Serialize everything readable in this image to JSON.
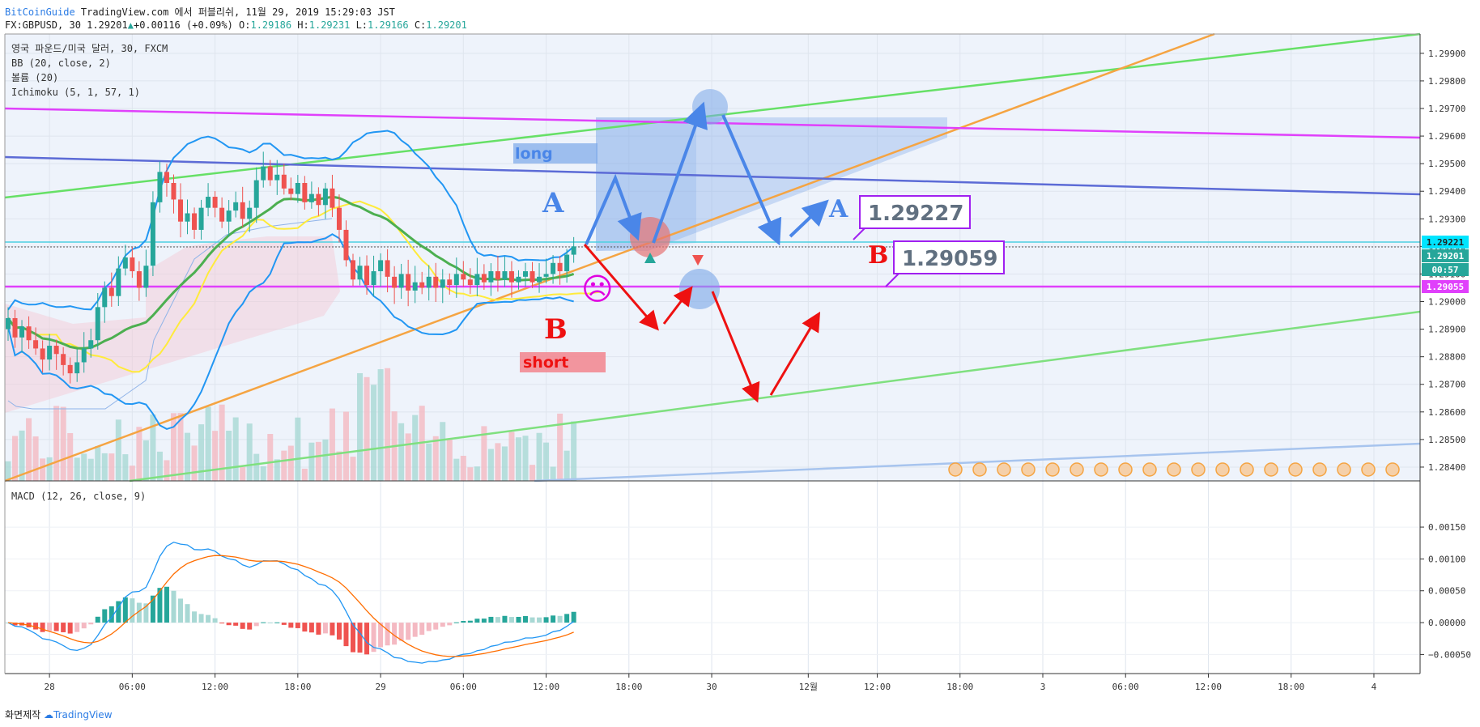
{
  "header": {
    "line1_brand": "BitCoinGuide",
    "line1_rest": " TradingView.com 에서 퍼블리쉬, 11월 29, 2019 15:29:03 JST",
    "symbol": "FX:GBPUSD, 30",
    "last": "1.29201",
    "change": "+0.00116 (+0.09%)",
    "o_label": "O:",
    "o": "1.29186",
    "h_label": "H:",
    "h": "1.29231",
    "l_label": "L:",
    "l": "1.29166",
    "c_label": "C:",
    "c": "1.29201"
  },
  "legend": {
    "title": "영국 파운드/미국 달러, 30, FXCM",
    "bb": "BB (20, close, 2)",
    "volume": "볼륨 (20)",
    "ichimoku": "Ichimoku (5, 1, 57, 1)",
    "macd": "MACD (12, 26, close, 9)"
  },
  "annotations": {
    "long": "long",
    "short": "short",
    "a1": "A",
    "a2": "A",
    "b1": "B",
    "b2": "B",
    "callout_a": "1.29227",
    "callout_b": "1.29059",
    "sad_face": "☹"
  },
  "price_badges": {
    "cyan": "1.29221",
    "last": "1.29201",
    "timer": "00:57",
    "pink": "1.29055"
  },
  "footer": {
    "made": "화면제작",
    "brand": "TradingView"
  },
  "colors": {
    "up": "#26a69a",
    "down": "#ef5350",
    "bb": "#2196f3",
    "tenkan": "#4caf50",
    "kijun": "#ffeb3b",
    "green_line": "#66e066",
    "orange_line": "#f5a442",
    "magenta_line": "#e040fb",
    "indigo_line": "#5c6bd6",
    "arrow_blue": "#4a86e8",
    "arrow_red": "#ee1111",
    "macd_line": "#2196f3",
    "signal_line": "#ff6d00"
  },
  "chart_data": [
    {
      "type": "candlestick",
      "symbol": "GBPUSD",
      "interval": "30",
      "ylim": [
        1.2835,
        1.2997
      ],
      "y_ticks": [
        1.284,
        1.285,
        1.286,
        1.287,
        1.288,
        1.289,
        1.29,
        1.291,
        1.292,
        1.293,
        1.294,
        1.295,
        1.296,
        1.297,
        1.298,
        1.299
      ],
      "x_ticks": [
        "28",
        "06:00",
        "12:00",
        "18:00",
        "29",
        "06:00",
        "12:00",
        "18:00",
        "30",
        "12월",
        "12:00",
        "18:00",
        "3",
        "06:00",
        "12:00",
        "18:00",
        "4"
      ],
      "x_tick_bars": [
        6,
        18,
        30,
        42,
        54,
        66,
        78,
        90,
        102,
        116,
        126,
        138,
        150,
        162,
        174,
        186,
        198
      ],
      "close": [
        1.2894,
        1.2887,
        1.2891,
        1.2886,
        1.2883,
        1.2879,
        1.2884,
        1.2881,
        1.2877,
        1.2874,
        1.2878,
        1.2883,
        1.2886,
        1.2898,
        1.2905,
        1.2902,
        1.2912,
        1.2916,
        1.2911,
        1.2905,
        1.2913,
        1.2936,
        1.2947,
        1.2943,
        1.2937,
        1.2929,
        1.2932,
        1.2926,
        1.2934,
        1.2938,
        1.2934,
        1.2929,
        1.2933,
        1.2936,
        1.293,
        1.2934,
        1.2944,
        1.2949,
        1.2944,
        1.2946,
        1.2941,
        1.2939,
        1.2943,
        1.2936,
        1.2939,
        1.2935,
        1.2941,
        1.2934,
        1.2926,
        1.2915,
        1.2908,
        1.2913,
        1.2906,
        1.2911,
        1.2915,
        1.2909,
        1.2905,
        1.291,
        1.2904,
        1.2907,
        1.2905,
        1.2909,
        1.2905,
        1.2908,
        1.2906,
        1.291,
        1.2908,
        1.2906,
        1.291,
        1.2907,
        1.2911,
        1.2908,
        1.2911,
        1.2907,
        1.2909,
        1.2911,
        1.2907,
        1.2909,
        1.291,
        1.2914,
        1.2911,
        1.2917,
        1.292
      ],
      "up_volume_bars": [
        2,
        5,
        9,
        13,
        16,
        21,
        26,
        29,
        33,
        36,
        44,
        52,
        56,
        59,
        65,
        70,
        74,
        78,
        81,
        82
      ]
    },
    {
      "type": "line",
      "name": "MACD (12, 26, close, 9)",
      "ylim": [
        -0.0008,
        0.0022
      ],
      "y_ticks": [
        -0.0005,
        0.0,
        0.0005,
        0.001,
        0.0015
      ],
      "y_tick_labels": [
        "−0.00050",
        "0.00000",
        "0.00050",
        "0.00100",
        "0.00150"
      ]
    }
  ]
}
